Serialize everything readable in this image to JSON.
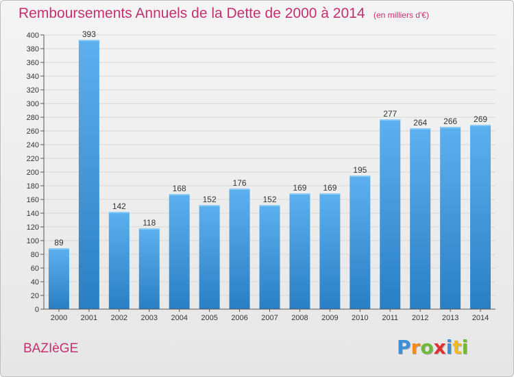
{
  "header": {
    "title": "Remboursements Annuels de la Dette de 2000 à 2014",
    "subtitle": "(en milliers d'€)"
  },
  "commune": "BAZIèGE",
  "brand": {
    "text": "Proxiti",
    "letters": [
      {
        "ch": "P",
        "color": "#3a8fd6"
      },
      {
        "ch": "r",
        "color": "#f28b1c"
      },
      {
        "ch": "o",
        "color": "#6fb83a"
      },
      {
        "ch": "x",
        "color": "#e0302f"
      },
      {
        "ch": "i",
        "color": "#3a8fd6"
      },
      {
        "ch": "t",
        "color": "#f2b81c"
      },
      {
        "ch": "i",
        "color": "#6fb83a"
      }
    ]
  },
  "colors": {
    "accent_text": "#c4306e",
    "bar_light": "#5db0ee",
    "bar_dark": "#2a7fc4",
    "grid": "#d6d6d6",
    "axis": "#555555"
  },
  "chart_data": {
    "type": "bar",
    "title": "Remboursements Annuels de la Dette de 2000 à 2014",
    "subtitle": "(en milliers d'€)",
    "xlabel": "",
    "ylabel": "",
    "categories": [
      "2000",
      "2001",
      "2002",
      "2003",
      "2004",
      "2005",
      "2006",
      "2007",
      "2008",
      "2009",
      "2010",
      "2011",
      "2012",
      "2013",
      "2014"
    ],
    "values": [
      89,
      393,
      142,
      118,
      168,
      152,
      176,
      152,
      169,
      169,
      195,
      277,
      264,
      266,
      269
    ],
    "data_labels": [
      "89",
      "393",
      "142",
      "118",
      "168",
      "152",
      "176",
      "152",
      "169",
      "169",
      "195",
      "277",
      "264",
      "266",
      "269"
    ],
    "ylim": [
      0,
      400
    ],
    "yticks": [
      0,
      20,
      40,
      60,
      80,
      100,
      120,
      140,
      160,
      180,
      200,
      220,
      240,
      260,
      280,
      300,
      320,
      340,
      360,
      380,
      400
    ],
    "grid": true,
    "legend": "none"
  }
}
